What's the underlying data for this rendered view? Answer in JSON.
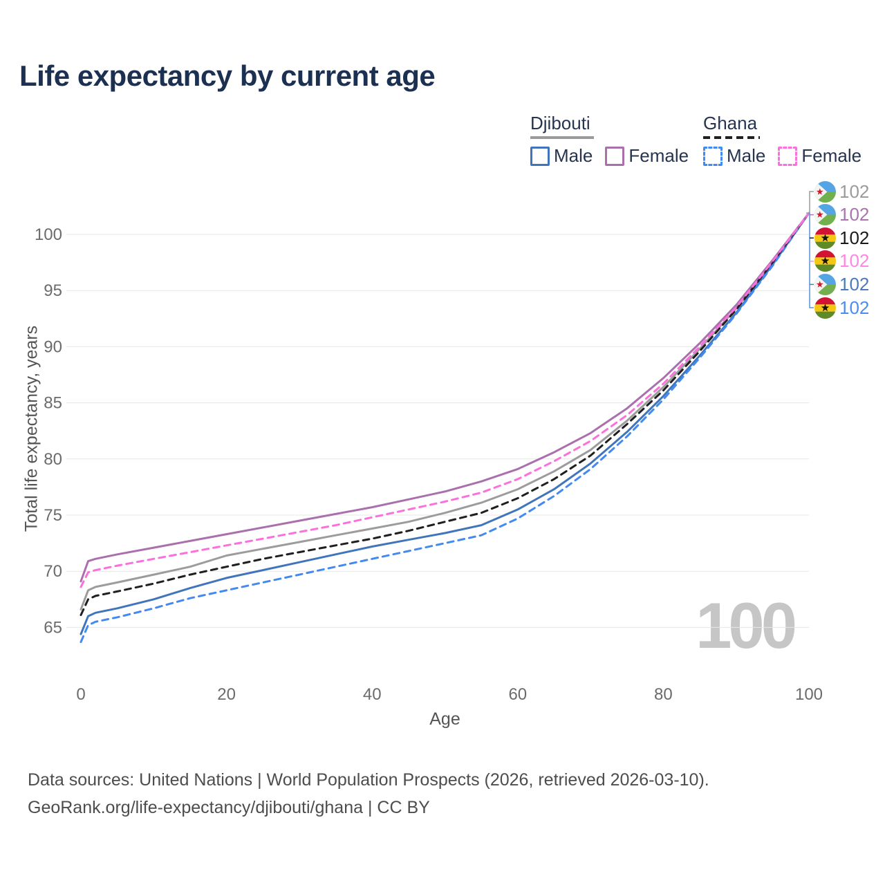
{
  "header": {
    "title": "Life expectancy by current age"
  },
  "legend": {
    "groups": [
      {
        "country": "Djibouti",
        "style": "solid",
        "underline_color": "#9a9a9a",
        "items": [
          {
            "label": "Male",
            "color": "#4175bb",
            "dashed": false
          },
          {
            "label": "Female",
            "color": "#aa6fad",
            "dashed": false
          }
        ]
      },
      {
        "country": "Ghana",
        "style": "dashed",
        "underline_color": "#1f1f1f",
        "items": [
          {
            "label": "Male",
            "color": "#4289f2",
            "dashed": true
          },
          {
            "label": "Female",
            "color": "#fb70dc",
            "dashed": true
          }
        ]
      }
    ]
  },
  "chart_data": {
    "type": "line",
    "title": "Life expectancy by current age",
    "xlabel": "Age",
    "ylabel": "Total life expectancy, years",
    "x_ticks": [
      0,
      20,
      40,
      60,
      80,
      100
    ],
    "y_ticks": [
      65,
      70,
      75,
      80,
      85,
      90,
      95,
      100
    ],
    "xlim": [
      0,
      100
    ],
    "ylim": [
      63,
      103
    ],
    "grid": "horizontal-only",
    "legend_position": "top-right",
    "watermark_age": "100",
    "ages": [
      0,
      1,
      2,
      5,
      10,
      15,
      20,
      25,
      30,
      35,
      40,
      45,
      50,
      55,
      60,
      65,
      70,
      75,
      80,
      85,
      90,
      95,
      100
    ],
    "series": [
      {
        "name": "Djibouti",
        "country": "Djibouti",
        "sex": "Both",
        "line": "solid",
        "color": "#9c9c9c",
        "values": [
          66.6,
          68.3,
          68.6,
          69.0,
          69.7,
          70.4,
          71.4,
          72.0,
          72.6,
          73.2,
          73.8,
          74.4,
          75.2,
          76.1,
          77.3,
          78.9,
          80.8,
          83.4,
          86.4,
          89.8,
          93.4,
          97.5,
          101.9
        ]
      },
      {
        "name": "Djibouti Female",
        "country": "Djibouti",
        "sex": "Female",
        "line": "solid",
        "color": "#aa6fad",
        "values": [
          69.1,
          70.9,
          71.1,
          71.5,
          72.1,
          72.7,
          73.3,
          73.9,
          74.5,
          75.1,
          75.7,
          76.4,
          77.1,
          78.0,
          79.1,
          80.6,
          82.3,
          84.5,
          87.2,
          90.3,
          93.7,
          97.7,
          101.9
        ]
      },
      {
        "name": "Ghana",
        "country": "Ghana",
        "sex": "Both",
        "line": "dashed",
        "color": "#1f1f1f",
        "values": [
          66.1,
          67.5,
          67.8,
          68.2,
          68.9,
          69.7,
          70.4,
          71.1,
          71.7,
          72.3,
          72.9,
          73.6,
          74.4,
          75.2,
          76.5,
          78.2,
          80.3,
          83.1,
          86.1,
          89.6,
          93.3,
          97.5,
          101.9
        ]
      },
      {
        "name": "Ghana Female",
        "country": "Ghana",
        "sex": "Female",
        "line": "dashed",
        "color": "#fb70dc",
        "values": [
          68.6,
          69.9,
          70.1,
          70.5,
          71.1,
          71.7,
          72.3,
          72.9,
          73.5,
          74.1,
          74.8,
          75.5,
          76.2,
          77.0,
          78.2,
          79.8,
          81.6,
          83.9,
          86.7,
          90.0,
          93.5,
          97.6,
          101.9
        ]
      },
      {
        "name": "Djibouti Male",
        "country": "Djibouti",
        "sex": "Male",
        "line": "solid",
        "color": "#4175bb",
        "values": [
          64.4,
          66.0,
          66.3,
          66.7,
          67.5,
          68.5,
          69.4,
          70.1,
          70.8,
          71.5,
          72.2,
          72.8,
          73.4,
          74.1,
          75.5,
          77.3,
          79.6,
          82.4,
          85.6,
          89.2,
          93.0,
          97.3,
          101.9
        ]
      },
      {
        "name": "Ghana Male",
        "country": "Ghana",
        "sex": "Male",
        "line": "dashed",
        "color": "#4289f2",
        "values": [
          63.7,
          65.2,
          65.5,
          65.9,
          66.7,
          67.6,
          68.3,
          69.0,
          69.7,
          70.4,
          71.1,
          71.8,
          72.5,
          73.2,
          74.7,
          76.7,
          79.1,
          82.0,
          85.3,
          89.0,
          92.9,
          97.2,
          101.9
        ]
      }
    ],
    "draw_order": [
      0,
      4,
      5,
      2,
      1,
      3
    ],
    "end_labels": [
      {
        "flag": "djibouti",
        "series": "Djibouti",
        "value": "102",
        "color": "#9b9b9b"
      },
      {
        "flag": "djibouti",
        "series": "Djibouti Female",
        "value": "102",
        "color": "#ab74ae"
      },
      {
        "flag": "ghana",
        "series": "Ghana",
        "value": "102",
        "color": "#1a1a1a"
      },
      {
        "flag": "ghana",
        "series": "Ghana Female",
        "value": "102",
        "color": "#ff85e6"
      },
      {
        "flag": "djibouti",
        "series": "Djibouti Male",
        "value": "102",
        "color": "#4b79bd"
      },
      {
        "flag": "ghana",
        "series": "Ghana Male",
        "value": "102",
        "color": "#4a8cf0"
      }
    ]
  },
  "footer": {
    "line1": "Data sources: United Nations | World Population Prospects (2026, retrieved 2026-03-10).",
    "line2": "GeoRank.org/life-expectancy/djibouti/ghana | CC BY"
  }
}
